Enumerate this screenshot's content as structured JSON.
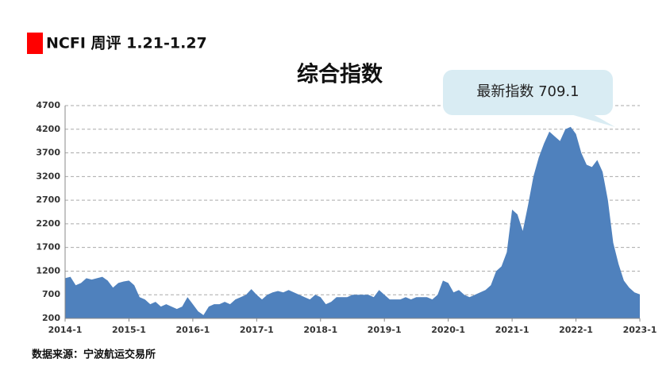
{
  "header": {
    "title": "NCFI 周评 1.21-1.27"
  },
  "callout": "最新指数 709.1",
  "source": "数据来源：宁波航运交易所",
  "chart_data": {
    "type": "area",
    "title": "综合指数",
    "color": "#4f81bd",
    "grid": true,
    "x": [
      "2014-1",
      "2014-2",
      "2014-3",
      "2014-4",
      "2014-5",
      "2014-6",
      "2014-7",
      "2014-8",
      "2014-9",
      "2014-10",
      "2014-11",
      "2014-12",
      "2015-1",
      "2015-2",
      "2015-3",
      "2015-4",
      "2015-5",
      "2015-6",
      "2015-7",
      "2015-8",
      "2015-9",
      "2015-10",
      "2015-11",
      "2015-12",
      "2016-1",
      "2016-2",
      "2016-3",
      "2016-4",
      "2016-5",
      "2016-6",
      "2016-7",
      "2016-8",
      "2016-9",
      "2016-10",
      "2016-11",
      "2016-12",
      "2017-1",
      "2017-2",
      "2017-3",
      "2017-4",
      "2017-5",
      "2017-6",
      "2017-7",
      "2017-8",
      "2017-9",
      "2017-10",
      "2017-11",
      "2017-12",
      "2018-1",
      "2018-2",
      "2018-3",
      "2018-4",
      "2018-5",
      "2018-6",
      "2018-7",
      "2018-8",
      "2018-9",
      "2018-10",
      "2018-11",
      "2018-12",
      "2019-1",
      "2019-2",
      "2019-3",
      "2019-4",
      "2019-5",
      "2019-6",
      "2019-7",
      "2019-8",
      "2019-9",
      "2019-10",
      "2019-11",
      "2019-12",
      "2020-1",
      "2020-2",
      "2020-3",
      "2020-4",
      "2020-5",
      "2020-6",
      "2020-7",
      "2020-8",
      "2020-9",
      "2020-10",
      "2020-11",
      "2020-12",
      "2021-1",
      "2021-2",
      "2021-3",
      "2021-4",
      "2021-5",
      "2021-6",
      "2021-7",
      "2021-8",
      "2021-9",
      "2021-10",
      "2021-11",
      "2021-12",
      "2022-1",
      "2022-2",
      "2022-3",
      "2022-4",
      "2022-5",
      "2022-6",
      "2022-7",
      "2022-8",
      "2022-9",
      "2022-10",
      "2022-11",
      "2022-12",
      "2023-1"
    ],
    "values": [
      1050,
      1080,
      900,
      950,
      1050,
      1020,
      1050,
      1080,
      1000,
      850,
      950,
      980,
      1000,
      900,
      650,
      600,
      500,
      550,
      450,
      500,
      450,
      400,
      450,
      650,
      500,
      350,
      270,
      450,
      500,
      500,
      550,
      500,
      600,
      650,
      700,
      820,
      700,
      600,
      700,
      750,
      780,
      750,
      800,
      750,
      700,
      650,
      600,
      700,
      650,
      500,
      550,
      650,
      650,
      650,
      700,
      700,
      700,
      700,
      650,
      800,
      700,
      600,
      600,
      600,
      650,
      600,
      650,
      650,
      650,
      600,
      700,
      1000,
      950,
      750,
      800,
      700,
      650,
      700,
      750,
      800,
      900,
      1200,
      1300,
      1600,
      2500,
      2400,
      2050,
      2600,
      3200,
      3600,
      3900,
      4150,
      4050,
      3950,
      4200,
      4250,
      4100,
      3700,
      3450,
      3400,
      3550,
      3300,
      2700,
      1800,
      1350,
      1000,
      850,
      750,
      709
    ],
    "xticks": [
      "2014-1",
      "2015-1",
      "2016-1",
      "2017-1",
      "2018-1",
      "2019-1",
      "2020-1",
      "2021-1",
      "2022-1",
      "2023-1"
    ],
    "ylim": [
      200,
      4700
    ],
    "yticks": [
      200,
      700,
      1200,
      1700,
      2200,
      2700,
      3200,
      3700,
      4200,
      4700
    ]
  }
}
